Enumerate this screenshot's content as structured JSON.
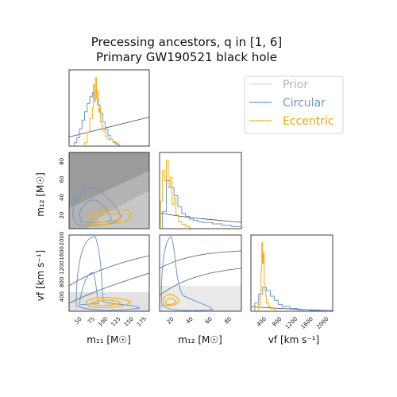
{
  "chart_data": {
    "type": "corner",
    "title": [
      "Precessing ancestors, q in [1, 6]",
      "Primary GW190521 black hole"
    ],
    "legend": {
      "placement": "top-right",
      "entries": [
        {
          "label": "Prior",
          "color": "#d9d9d9"
        },
        {
          "label": "Circular",
          "color": "#6f97c9"
        },
        {
          "label": "Eccentric",
          "color": "#f2b21c"
        }
      ]
    },
    "parameters": [
      {
        "key": "m11",
        "label": "m₁₁ [M☉]",
        "range": [
          25,
          180
        ],
        "ticks": [
          50,
          75,
          100,
          125,
          150,
          175
        ]
      },
      {
        "key": "m12",
        "label": "m₁₂ [M☉]",
        "range": [
          5,
          90
        ],
        "ticks": [
          20,
          40,
          60,
          80
        ]
      },
      {
        "key": "vf",
        "label": "vf [km s⁻¹]",
        "range": [
          0,
          2100
        ],
        "ticks": [
          400,
          800,
          1200,
          1600,
          2000
        ]
      }
    ],
    "y_axis_labels": {
      "m12": "m₁₂ [M☉]",
      "vf": "vf [km s⁻¹]",
      "m12_ticks": [
        20,
        40,
        60,
        80
      ],
      "vf_ticks": [
        400,
        800,
        1200,
        1600,
        2000
      ]
    },
    "series": [
      {
        "name": "Prior",
        "hist_m11": {
          "x": [
            25,
            180
          ],
          "values": [
            0.12,
            0.38
          ]
        }
      },
      {
        "name": "Circular",
        "hist_m11": {
          "x": [
            35,
            40,
            45,
            50,
            55,
            60,
            65,
            70,
            75,
            80,
            85,
            90,
            95,
            100,
            105,
            110,
            115,
            120
          ],
          "values": [
            0.05,
            0.12,
            0.25,
            0.38,
            0.5,
            0.62,
            0.72,
            0.78,
            0.7,
            0.6,
            0.48,
            0.35,
            0.24,
            0.16,
            0.1,
            0.06,
            0.03,
            0.01
          ]
        },
        "hist_m12": {
          "x": [
            8,
            12,
            16,
            20,
            24,
            28,
            32,
            36,
            40,
            45,
            50,
            60,
            70,
            80,
            90
          ],
          "values": [
            0.25,
            0.7,
            0.6,
            0.48,
            0.32,
            0.22,
            0.18,
            0.14,
            0.12,
            0.1,
            0.09,
            0.07,
            0.05,
            0.03,
            0.02
          ]
        },
        "hist_vf": {
          "x": [
            100,
            200,
            300,
            400,
            500,
            600,
            700,
            800,
            1000,
            1200,
            1500,
            2000
          ],
          "values": [
            0.12,
            0.25,
            0.35,
            0.3,
            0.22,
            0.16,
            0.1,
            0.07,
            0.04,
            0.02,
            0.01,
            0.005
          ]
        }
      },
      {
        "name": "Eccentric",
        "hist_m11": {
          "x": [
            55,
            60,
            65,
            70,
            72,
            74,
            76,
            78,
            80,
            82,
            84,
            86,
            88,
            90,
            95,
            100,
            110,
            120
          ],
          "values": [
            0.05,
            0.2,
            0.4,
            0.55,
            0.9,
            0.65,
            1.0,
            0.7,
            0.8,
            0.5,
            0.55,
            0.35,
            0.3,
            0.22,
            0.14,
            0.1,
            0.05,
            0.02
          ]
        },
        "hist_m12": {
          "x": [
            6,
            8,
            10,
            12,
            14,
            16,
            18,
            20,
            22,
            25,
            28,
            32,
            36
          ],
          "values": [
            0.4,
            0.85,
            0.7,
            1.0,
            0.6,
            0.75,
            0.35,
            0.45,
            0.2,
            0.1,
            0.06,
            0.03,
            0.01
          ]
        },
        "hist_vf": {
          "x": [
            200,
            240,
            260,
            280,
            300,
            320,
            340,
            360,
            380,
            400,
            450,
            500,
            600
          ],
          "values": [
            0.1,
            0.3,
            0.6,
            1.0,
            0.7,
            0.85,
            0.4,
            0.3,
            0.22,
            0.12,
            0.07,
            0.04,
            0.02
          ]
        }
      }
    ]
  }
}
